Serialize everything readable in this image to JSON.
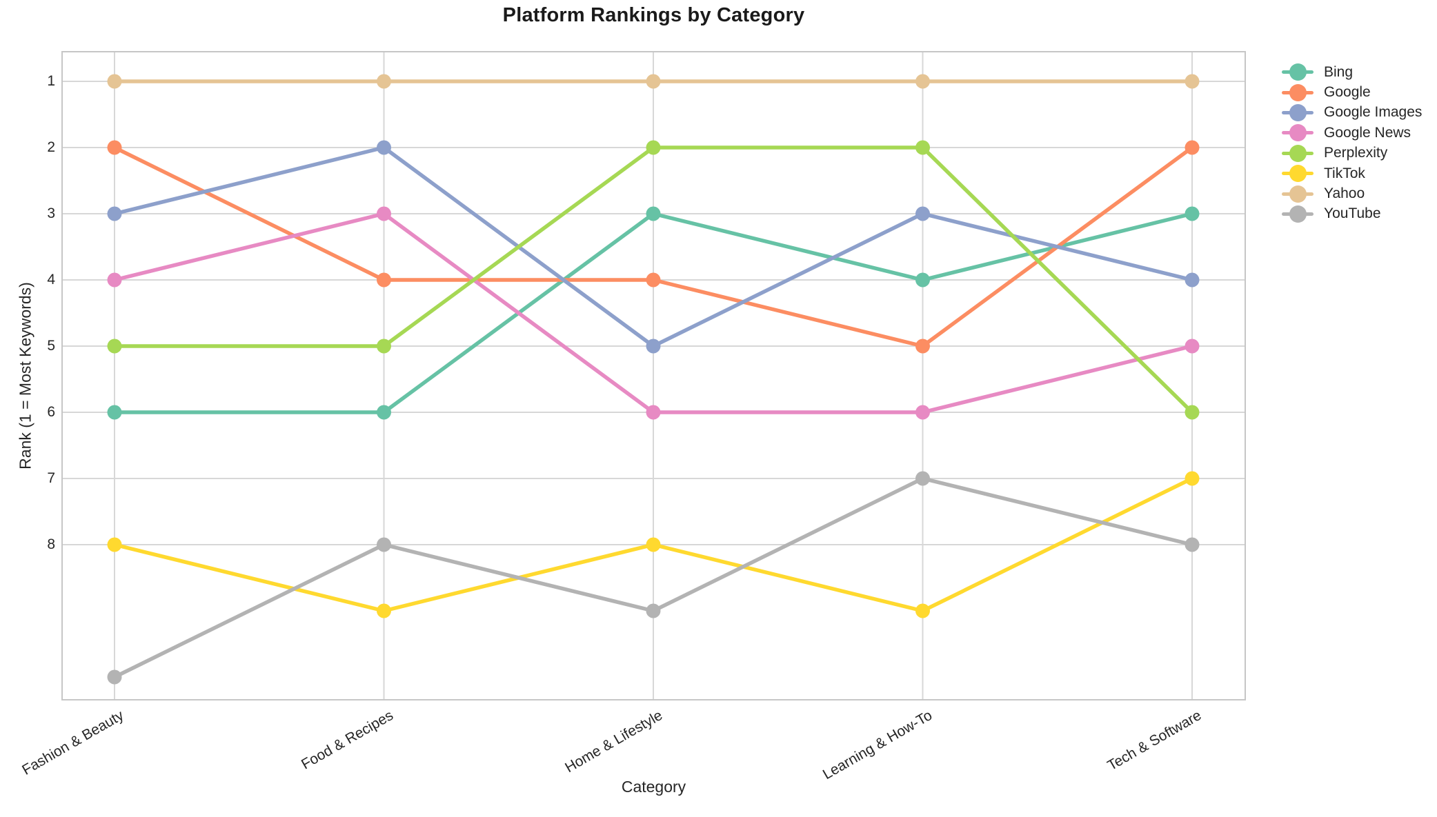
{
  "chart_data": {
    "type": "line",
    "title": "Platform Rankings by Category",
    "xlabel": "Category",
    "ylabel": "Rank (1 = Most Keywords)",
    "categories": [
      "Fashion & Beauty",
      "Food & Recipes",
      "Home & Lifestyle",
      "Learning & How-To",
      "Tech & Software"
    ],
    "y_ticks": [
      "1",
      "2",
      "3",
      "4",
      "5",
      "6",
      "7",
      "8"
    ],
    "y_axis_inverted": true,
    "ylim": [
      0.55,
      10.45
    ],
    "grid": true,
    "legend_position": "right-top-outside",
    "series": [
      {
        "name": "Bing",
        "color": "#66c2a5",
        "values": [
          6,
          6,
          3,
          4,
          3
        ]
      },
      {
        "name": "Google",
        "color": "#fc8d62",
        "values": [
          2,
          4,
          4,
          5,
          2
        ]
      },
      {
        "name": "Google Images",
        "color": "#8da0cb",
        "values": [
          3,
          2,
          5,
          3,
          4
        ]
      },
      {
        "name": "Google News",
        "color": "#e78ac3",
        "values": [
          4,
          3,
          6,
          6,
          5
        ]
      },
      {
        "name": "Perplexity",
        "color": "#a6d854",
        "values": [
          5,
          5,
          2,
          2,
          6
        ]
      },
      {
        "name": "TikTok",
        "color": "#ffd92f",
        "values": [
          8,
          9,
          8,
          9,
          7
        ]
      },
      {
        "name": "Yahoo",
        "color": "#e5c494",
        "values": [
          1,
          1,
          1,
          1,
          1
        ]
      },
      {
        "name": "YouTube",
        "color": "#b3b3b3",
        "values": [
          10,
          8,
          9,
          7,
          8
        ]
      }
    ],
    "style": {
      "grid_color": "#d7d7d7",
      "spine_color": "#c6c6c6",
      "text_color": "#262626"
    }
  }
}
